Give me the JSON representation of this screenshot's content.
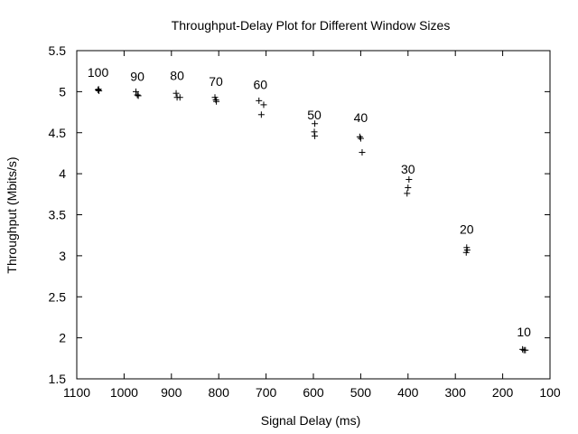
{
  "chart_data": {
    "type": "scatter",
    "title": "Throughput-Delay Plot for Different Window Sizes",
    "xlabel": "Signal Delay (ms)",
    "ylabel": "Throughput (Mbits/s)",
    "x_reversed": true,
    "xlim": [
      1100,
      100
    ],
    "ylim": [
      1.5,
      5.5
    ],
    "x_ticks": [
      1100,
      1000,
      900,
      800,
      700,
      600,
      500,
      400,
      300,
      200,
      100
    ],
    "y_ticks": [
      1.5,
      2,
      2.5,
      3,
      3.5,
      4,
      4.5,
      5,
      5.5
    ],
    "grid": false,
    "marker": "+",
    "color": "#000000",
    "points": [
      {
        "x": 1055,
        "y": 5.02
      },
      {
        "x": 1053,
        "y": 5.01
      },
      {
        "x": 1054,
        "y": 5.03
      },
      {
        "x": 975,
        "y": 5.0
      },
      {
        "x": 972,
        "y": 4.96
      },
      {
        "x": 970,
        "y": 4.95
      },
      {
        "x": 890,
        "y": 4.98
      },
      {
        "x": 888,
        "y": 4.93
      },
      {
        "x": 882,
        "y": 4.93
      },
      {
        "x": 808,
        "y": 4.93
      },
      {
        "x": 806,
        "y": 4.9
      },
      {
        "x": 805,
        "y": 4.88
      },
      {
        "x": 715,
        "y": 4.89
      },
      {
        "x": 705,
        "y": 4.84
      },
      {
        "x": 710,
        "y": 4.72
      },
      {
        "x": 597,
        "y": 4.61
      },
      {
        "x": 598,
        "y": 4.51
      },
      {
        "x": 597,
        "y": 4.46
      },
      {
        "x": 502,
        "y": 4.45
      },
      {
        "x": 500,
        "y": 4.43
      },
      {
        "x": 497,
        "y": 4.26
      },
      {
        "x": 398,
        "y": 3.93
      },
      {
        "x": 400,
        "y": 3.83
      },
      {
        "x": 402,
        "y": 3.76
      },
      {
        "x": 276,
        "y": 3.1
      },
      {
        "x": 275,
        "y": 3.07
      },
      {
        "x": 277,
        "y": 3.04
      },
      {
        "x": 158,
        "y": 1.86
      },
      {
        "x": 155,
        "y": 1.85
      },
      {
        "x": 152,
        "y": 1.85
      }
    ],
    "annotations": [
      {
        "text": "100",
        "x": 1055,
        "y": 5.18
      },
      {
        "text": "90",
        "x": 972,
        "y": 5.13
      },
      {
        "text": "80",
        "x": 888,
        "y": 5.14
      },
      {
        "text": "70",
        "x": 806,
        "y": 5.07
      },
      {
        "text": "60",
        "x": 712,
        "y": 5.03
      },
      {
        "text": "50",
        "x": 598,
        "y": 4.66
      },
      {
        "text": "40",
        "x": 500,
        "y": 4.63
      },
      {
        "text": "30",
        "x": 400,
        "y": 4.0
      },
      {
        "text": "20",
        "x": 276,
        "y": 3.27
      },
      {
        "text": "10",
        "x": 155,
        "y": 2.02
      }
    ]
  }
}
